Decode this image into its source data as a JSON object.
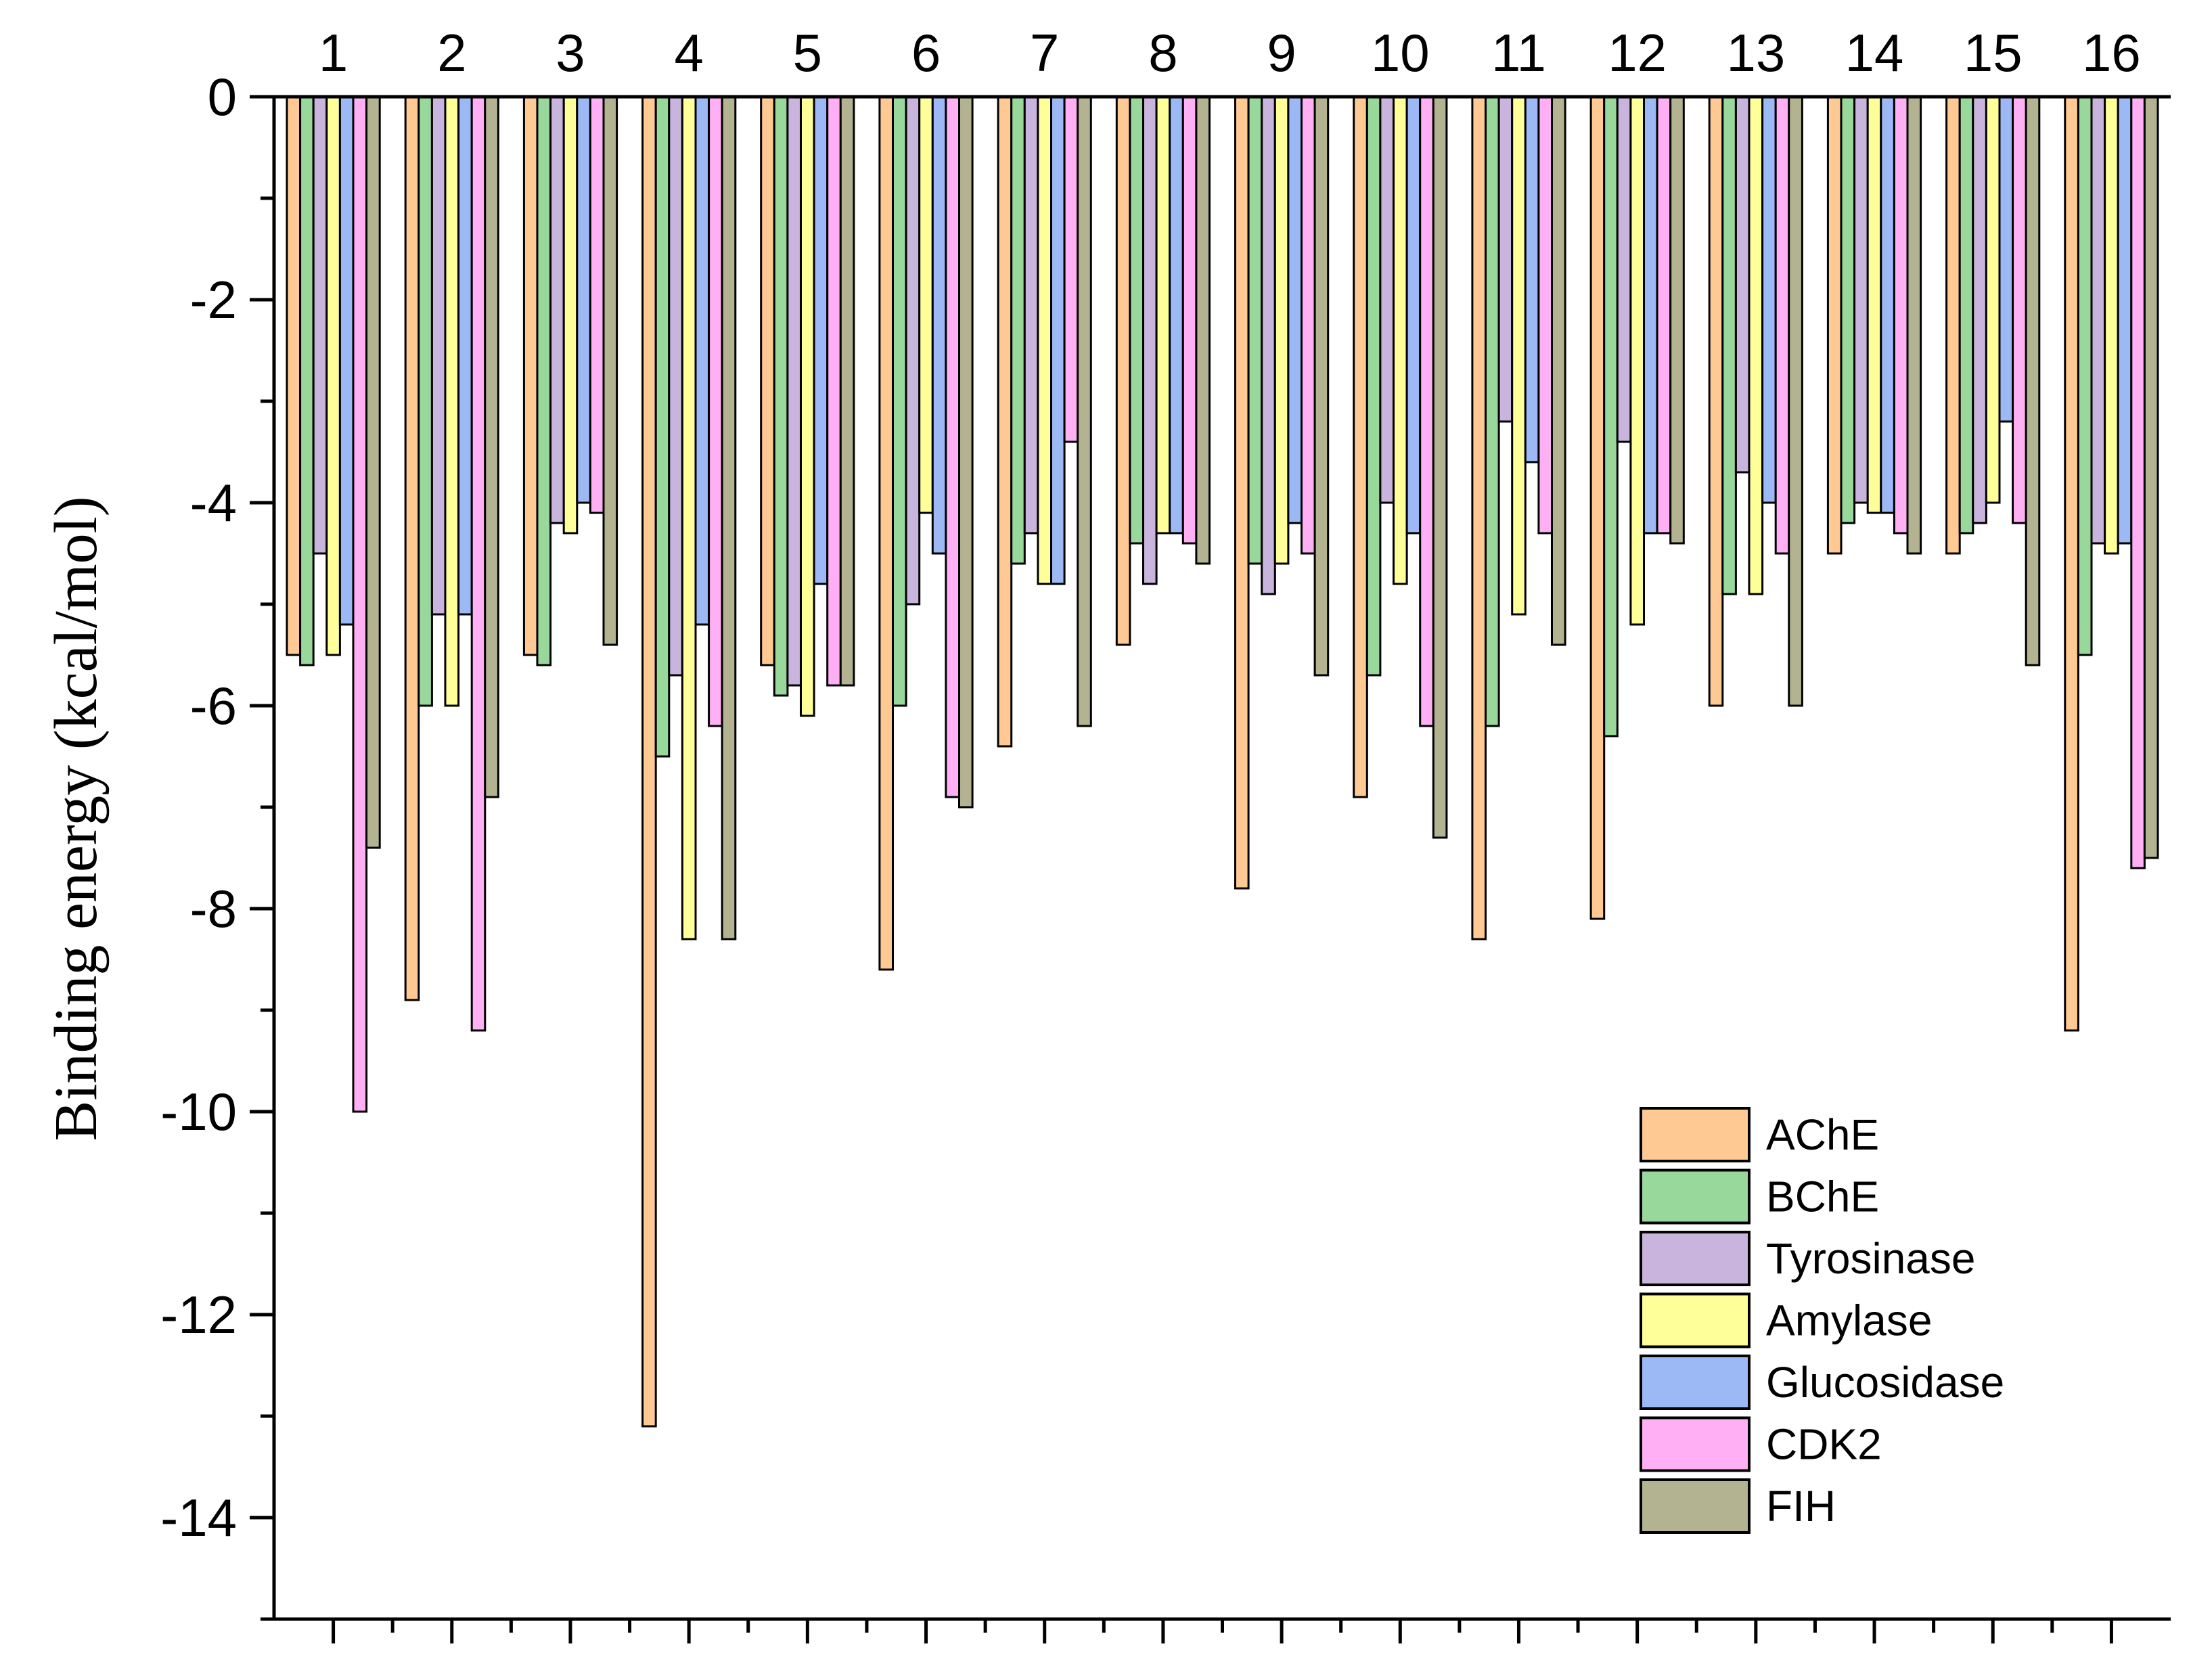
{
  "chart_data": {
    "type": "bar",
    "title": "",
    "xlabel": "",
    "ylabel": "Binding energy (kcal/mol)",
    "ylim": [
      -15,
      0
    ],
    "yticks": [
      0,
      -2,
      -4,
      -6,
      -8,
      -10,
      -12,
      -14
    ],
    "y_tick_labels": [
      "0",
      "-2",
      "-4",
      "-6",
      "-8",
      "-10",
      "-12",
      "-14"
    ],
    "x_axis_position": "top",
    "grid": false,
    "legend_position": "bottom-right",
    "categories": [
      "1",
      "2",
      "3",
      "4",
      "5",
      "6",
      "7",
      "8",
      "9",
      "10",
      "11",
      "12",
      "13",
      "14",
      "15",
      "16"
    ],
    "series": [
      {
        "name": "AChE",
        "color": "#FFC993",
        "values": [
          -5.5,
          -8.9,
          -5.5,
          -13.1,
          -5.6,
          -8.6,
          -6.4,
          -5.4,
          -7.8,
          -6.9,
          -8.3,
          -8.1,
          -6.0,
          -4.5,
          -4.5,
          -9.2
        ]
      },
      {
        "name": "BChE",
        "color": "#98D89A",
        "values": [
          -5.6,
          -6.0,
          -5.6,
          -6.5,
          -5.9,
          -6.0,
          -4.6,
          -4.4,
          -4.6,
          -5.7,
          -6.2,
          -6.3,
          -4.9,
          -4.2,
          -4.3,
          -5.5
        ]
      },
      {
        "name": "Tyrosinase",
        "color": "#C8B4DC",
        "values": [
          -4.5,
          -5.1,
          -4.2,
          -5.7,
          -5.8,
          -5.0,
          -4.3,
          -4.8,
          -4.9,
          -4.0,
          -3.2,
          -3.4,
          -3.7,
          -4.0,
          -4.2,
          -4.4
        ]
      },
      {
        "name": "Amylase",
        "color": "#FFFF9A",
        "values": [
          -5.5,
          -6.0,
          -4.3,
          -8.3,
          -6.1,
          -4.1,
          -4.8,
          -4.3,
          -4.6,
          -4.8,
          -5.1,
          -5.2,
          -4.9,
          -4.1,
          -4.0,
          -4.5
        ]
      },
      {
        "name": "Glucosidase",
        "color": "#9DB9F5",
        "values": [
          -5.2,
          -5.1,
          -4.0,
          -5.2,
          -4.8,
          -4.5,
          -4.8,
          -4.3,
          -4.2,
          -4.3,
          -3.6,
          -4.3,
          -4.0,
          -4.1,
          -3.2,
          -4.4
        ]
      },
      {
        "name": "CDK2",
        "color": "#FFB0F5",
        "values": [
          -10.0,
          -9.2,
          -4.1,
          -6.2,
          -5.8,
          -6.9,
          -3.4,
          -4.4,
          -4.5,
          -6.2,
          -4.3,
          -4.3,
          -4.5,
          -4.3,
          -4.2,
          -7.6
        ]
      },
      {
        "name": "FIH",
        "color": "#B3B392",
        "values": [
          -7.4,
          -6.9,
          -5.4,
          -8.3,
          -5.8,
          -7.0,
          -6.2,
          -4.6,
          -5.7,
          -7.3,
          -5.4,
          -4.4,
          -6.0,
          -4.5,
          -5.6,
          -7.5
        ]
      }
    ]
  }
}
